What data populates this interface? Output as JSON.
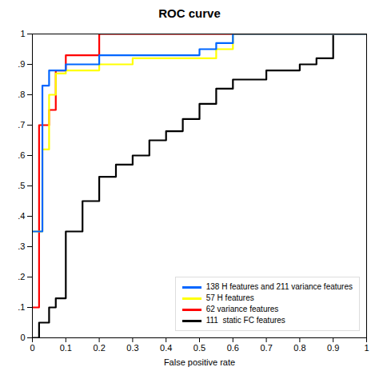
{
  "chart_data": {
    "type": "line",
    "title": "ROC curve",
    "x_label": "False positive rate",
    "series": [
      {
        "name": "138 H features and 211 variance features",
        "color": "#0066ff",
        "x": [
          0.0,
          0.03,
          0.03,
          0.05,
          0.05,
          0.1,
          0.1,
          0.2,
          0.2,
          0.3,
          0.3,
          0.5,
          0.5,
          0.55,
          0.55,
          0.6,
          0.6,
          1.0
        ],
        "values": [
          0.35,
          0.35,
          0.83,
          0.83,
          0.88,
          0.88,
          0.9,
          0.9,
          0.93,
          0.93,
          0.93,
          0.93,
          0.95,
          0.95,
          0.97,
          0.97,
          1.0,
          1.0
        ]
      },
      {
        "name": "57 H features",
        "color": "#ffff00",
        "x": [
          0.0,
          0.03,
          0.03,
          0.05,
          0.05,
          0.07,
          0.07,
          0.1,
          0.1,
          0.2,
          0.2,
          0.3,
          0.3,
          0.55,
          0.55,
          0.6,
          0.6,
          1.0
        ],
        "values": [
          0.35,
          0.35,
          0.62,
          0.62,
          0.8,
          0.8,
          0.87,
          0.87,
          0.88,
          0.88,
          0.9,
          0.9,
          0.92,
          0.92,
          0.95,
          0.95,
          1.0,
          1.0
        ]
      },
      {
        "name": "62 variance features",
        "color": "#ff0000",
        "x": [
          0.0,
          0.02,
          0.02,
          0.05,
          0.05,
          0.07,
          0.07,
          0.1,
          0.1,
          0.2,
          0.2,
          0.3,
          0.3,
          1.0
        ],
        "values": [
          0.1,
          0.1,
          0.7,
          0.7,
          0.75,
          0.75,
          0.88,
          0.88,
          0.93,
          0.93,
          1.0,
          1.0,
          1.0,
          1.0
        ]
      },
      {
        "name": "111  static FC features",
        "color": "#000000",
        "x": [
          0.0,
          0.02,
          0.02,
          0.05,
          0.05,
          0.07,
          0.07,
          0.1,
          0.1,
          0.15,
          0.15,
          0.2,
          0.2,
          0.25,
          0.25,
          0.3,
          0.3,
          0.35,
          0.35,
          0.4,
          0.4,
          0.45,
          0.45,
          0.5,
          0.5,
          0.55,
          0.55,
          0.6,
          0.6,
          0.7,
          0.7,
          0.8,
          0.8,
          0.85,
          0.85,
          0.9,
          0.9,
          1.0
        ],
        "values": [
          0.0,
          0.0,
          0.05,
          0.05,
          0.1,
          0.1,
          0.13,
          0.13,
          0.35,
          0.35,
          0.45,
          0.45,
          0.53,
          0.53,
          0.57,
          0.57,
          0.6,
          0.6,
          0.65,
          0.65,
          0.68,
          0.68,
          0.72,
          0.72,
          0.77,
          0.77,
          0.82,
          0.82,
          0.85,
          0.85,
          0.88,
          0.88,
          0.9,
          0.9,
          0.92,
          0.92,
          1.0,
          1.0
        ]
      }
    ],
    "xlim": [
      0,
      1.0
    ],
    "ylim": [
      0,
      1.0
    ],
    "xticks": [
      0,
      0.1,
      0.2,
      0.3,
      0.4,
      0.5,
      0.6,
      0.7,
      0.8,
      0.9,
      1
    ],
    "yticks": [
      0,
      {
        "value": 0.1,
        "label": ".1"
      },
      {
        "value": 0.2,
        "label": ".2"
      },
      {
        "value": 0.3,
        "label": ".3"
      },
      {
        "value": 0.4,
        "label": ".4"
      },
      {
        "value": 0.5,
        "label": ".5"
      },
      {
        "value": 0.6,
        "label": ".6"
      },
      {
        "value": 0.7,
        "label": ".7"
      },
      {
        "value": 0.8,
        "label": ".8"
      },
      {
        "value": 0.9,
        "label": ".9"
      },
      1
    ],
    "grid": false,
    "legend": "lower right"
  }
}
